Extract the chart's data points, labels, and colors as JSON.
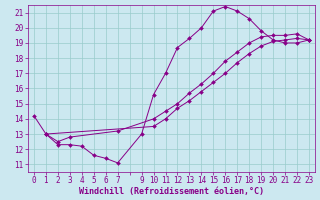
{
  "xlabel": "Windchill (Refroidissement éolien,°C)",
  "xlim": [
    -0.5,
    23.5
  ],
  "ylim": [
    10.5,
    21.5
  ],
  "yticks": [
    11,
    12,
    13,
    14,
    15,
    16,
    17,
    18,
    19,
    20,
    21
  ],
  "bg_color": "#cce8f0",
  "line_color": "#880088",
  "grid_color": "#99cccc",
  "line1_x": [
    0,
    1,
    2,
    3,
    4,
    5,
    6,
    7,
    9,
    10,
    11,
    12,
    13,
    14,
    15,
    16,
    17,
    18,
    19,
    20,
    21,
    22,
    23
  ],
  "line1_y": [
    14.2,
    13.0,
    12.3,
    12.3,
    12.2,
    11.6,
    11.4,
    11.1,
    13.0,
    15.6,
    17.0,
    18.7,
    19.3,
    20.0,
    21.1,
    21.4,
    21.1,
    20.6,
    19.8,
    19.2,
    19.0,
    19.0,
    19.2
  ],
  "line2_x": [
    1,
    2,
    3,
    7,
    10,
    11,
    12,
    13,
    14,
    15,
    16,
    17,
    18,
    19,
    20,
    21,
    22,
    23
  ],
  "line2_y": [
    13.0,
    12.5,
    12.8,
    13.2,
    14.0,
    14.5,
    15.0,
    15.7,
    16.3,
    17.0,
    17.8,
    18.4,
    19.0,
    19.4,
    19.5,
    19.5,
    19.6,
    19.2
  ],
  "line3_x": [
    1,
    10,
    11,
    12,
    13,
    14,
    15,
    16,
    17,
    18,
    19,
    20,
    21,
    22,
    23
  ],
  "line3_y": [
    13.0,
    13.5,
    14.0,
    14.7,
    15.2,
    15.8,
    16.4,
    17.0,
    17.7,
    18.3,
    18.8,
    19.1,
    19.2,
    19.3,
    19.2
  ],
  "font_size": 5.5,
  "label_font_size": 6.0
}
